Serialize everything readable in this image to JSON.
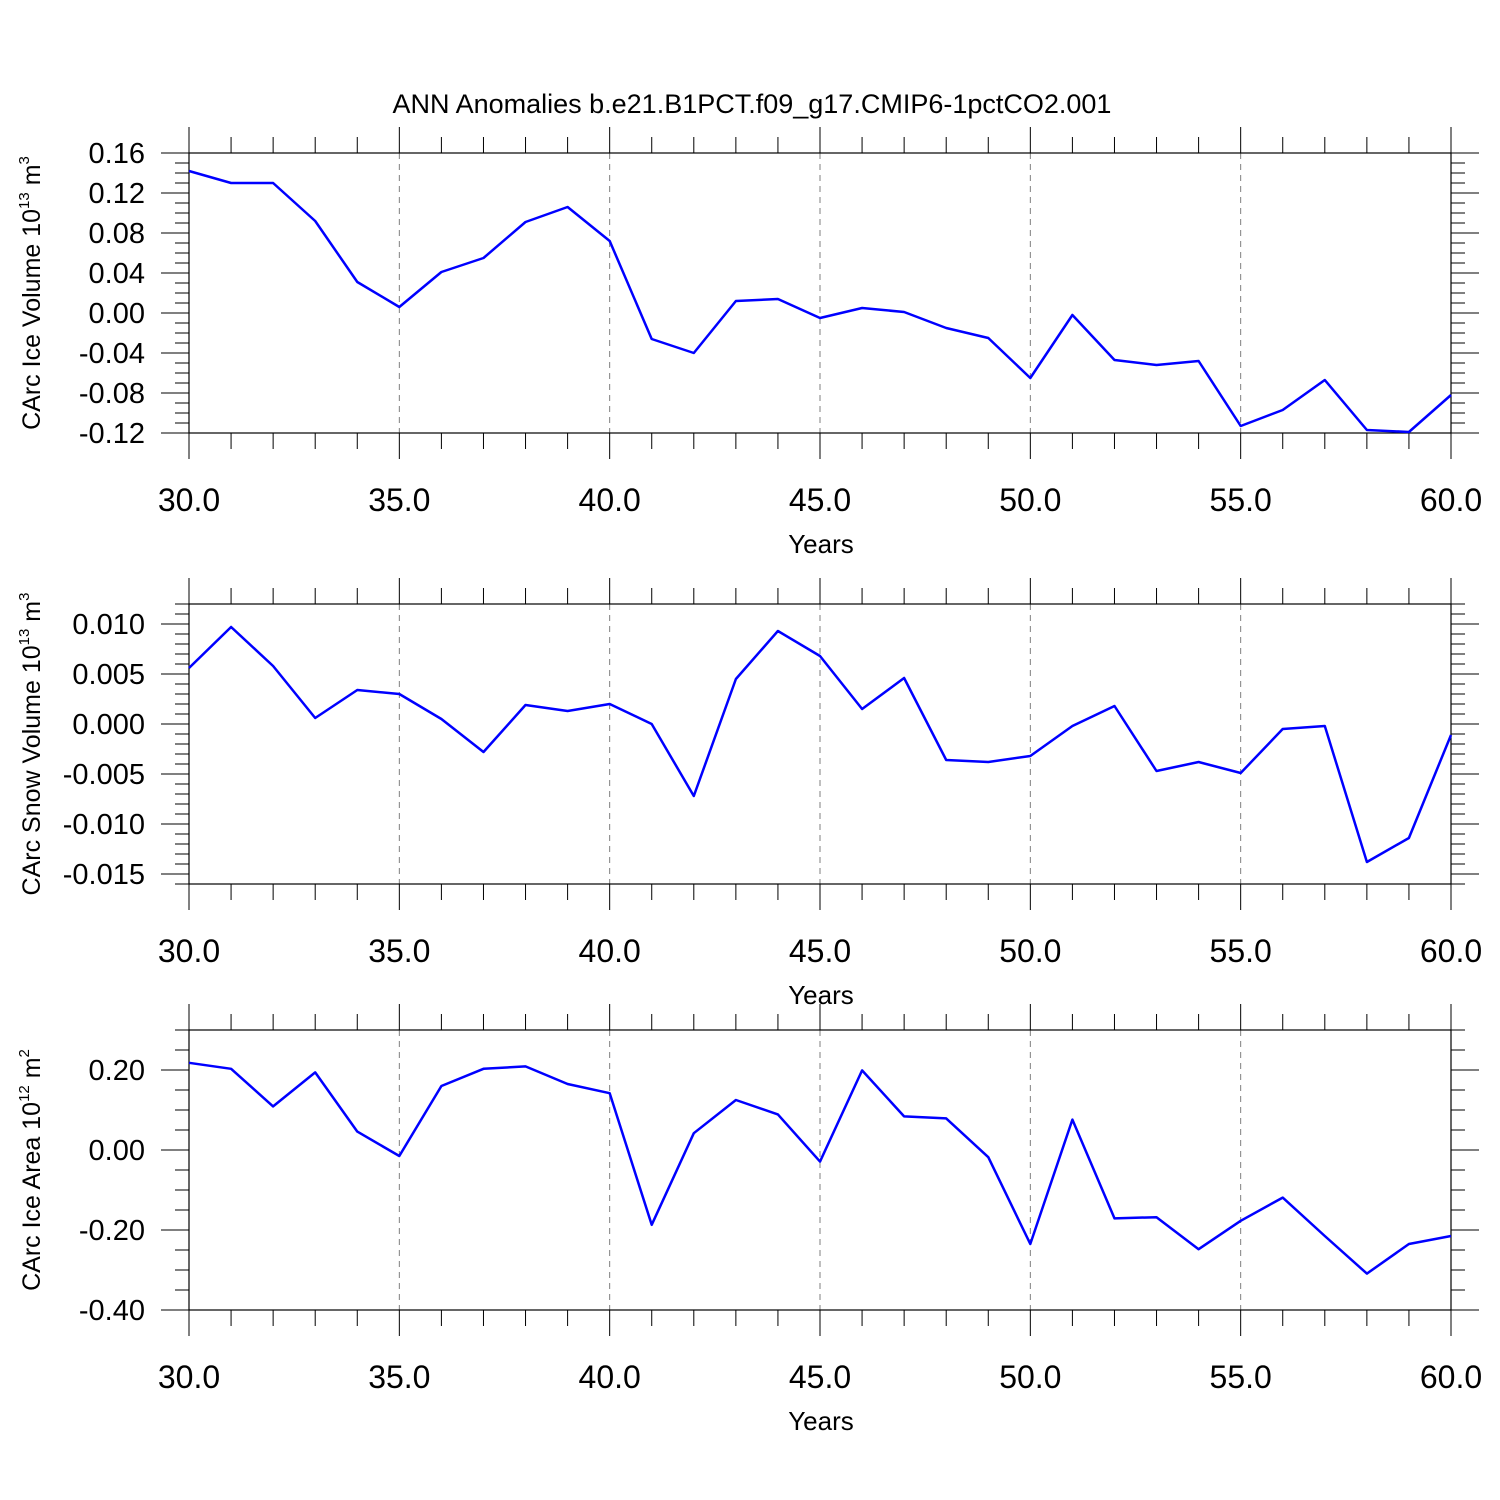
{
  "title": "ANN Anomalies b.e21.B1PCT.f09_g17.CMIP6-1pctCO2.001",
  "colors": {
    "series": "#0000ff",
    "axis": "#000000",
    "grid": "#7f7f7f"
  },
  "chart_data": [
    {
      "type": "line",
      "ylabel": {
        "text": "CArc Ice Volume 10",
        "exp": "13",
        "unit": " m",
        "unit_exp": "3"
      },
      "xlabel": "Years",
      "xlim": [
        30,
        60
      ],
      "ylim": [
        -0.12,
        0.16
      ],
      "xticks": [
        "30.0",
        "35.0",
        "40.0",
        "45.0",
        "50.0",
        "55.0",
        "60.0"
      ],
      "yticks": [
        "-0.12",
        "-0.08",
        "-0.04",
        "0.00",
        "0.04",
        "0.08",
        "0.12",
        "0.16"
      ],
      "grid": "vertical dashed at major x ticks",
      "x": [
        30,
        31,
        32,
        33,
        34,
        35,
        36,
        37,
        38,
        39,
        40,
        41,
        42,
        43,
        44,
        45,
        46,
        47,
        48,
        49,
        50,
        51,
        52,
        53,
        54,
        55,
        56,
        57,
        58,
        59,
        60
      ],
      "values": [
        0.142,
        0.13,
        0.13,
        0.092,
        0.031,
        0.006,
        0.041,
        0.055,
        0.091,
        0.106,
        0.072,
        -0.026,
        -0.04,
        0.012,
        0.014,
        -0.005,
        0.005,
        0.001,
        -0.015,
        -0.025,
        -0.065,
        -0.002,
        -0.047,
        -0.052,
        -0.048,
        -0.113,
        -0.097,
        -0.067,
        -0.117,
        -0.119,
        -0.082
      ]
    },
    {
      "type": "line",
      "ylabel": {
        "text": "CArc Snow Volume 10",
        "exp": "13",
        "unit": " m",
        "unit_exp": "3"
      },
      "xlabel": "Years",
      "xlim": [
        30,
        60
      ],
      "ylim": [
        -0.016,
        0.012
      ],
      "xticks": [
        "30.0",
        "35.0",
        "40.0",
        "45.0",
        "50.0",
        "55.0",
        "60.0"
      ],
      "yticks": [
        "-0.015",
        "-0.010",
        "-0.005",
        "0.000",
        "0.005",
        "0.010"
      ],
      "ytick_values": [
        -0.015,
        -0.01,
        -0.005,
        0.0,
        0.005,
        0.01
      ],
      "grid": "vertical dashed at major x ticks",
      "x": [
        30,
        31,
        32,
        33,
        34,
        35,
        36,
        37,
        38,
        39,
        40,
        41,
        42,
        43,
        44,
        45,
        46,
        47,
        48,
        49,
        50,
        51,
        52,
        53,
        54,
        55,
        56,
        57,
        58,
        59,
        60
      ],
      "values": [
        0.0056,
        0.0097,
        0.0058,
        0.0006,
        0.0034,
        0.003,
        0.0005,
        -0.0028,
        0.0019,
        0.0013,
        0.002,
        0.0,
        -0.0072,
        0.0045,
        0.0093,
        0.0068,
        0.0015,
        0.0046,
        -0.0036,
        -0.0038,
        -0.0032,
        -0.0002,
        0.0018,
        -0.0047,
        -0.0038,
        -0.0049,
        -0.0005,
        -0.0002,
        -0.0138,
        -0.0114,
        -0.0011
      ]
    },
    {
      "type": "line",
      "ylabel": {
        "text": "CArc Ice Area 10",
        "exp": "12",
        "unit": " m",
        "unit_exp": "2"
      },
      "xlabel": "Years",
      "xlim": [
        30,
        60
      ],
      "ylim": [
        -0.4,
        0.3
      ],
      "xticks": [
        "30.0",
        "35.0",
        "40.0",
        "45.0",
        "50.0",
        "55.0",
        "60.0"
      ],
      "yticks": [
        "-0.40",
        "-0.20",
        "0.00",
        "0.20"
      ],
      "ytick_values": [
        -0.4,
        -0.2,
        0.0,
        0.2
      ],
      "grid": "vertical dashed at major x ticks",
      "x": [
        30,
        31,
        32,
        33,
        34,
        35,
        36,
        37,
        38,
        39,
        40,
        41,
        42,
        43,
        44,
        45,
        46,
        47,
        48,
        49,
        50,
        51,
        52,
        53,
        54,
        55,
        56,
        57,
        58,
        59,
        60
      ],
      "values": [
        0.218,
        0.203,
        0.109,
        0.194,
        0.046,
        -0.015,
        0.16,
        0.203,
        0.209,
        0.165,
        0.142,
        -0.187,
        0.042,
        0.125,
        0.089,
        -0.029,
        0.199,
        0.084,
        0.079,
        -0.018,
        -0.235,
        0.076,
        -0.171,
        -0.168,
        -0.248,
        -0.177,
        -0.119,
        -0.215,
        -0.309,
        -0.235,
        -0.215
      ]
    }
  ]
}
